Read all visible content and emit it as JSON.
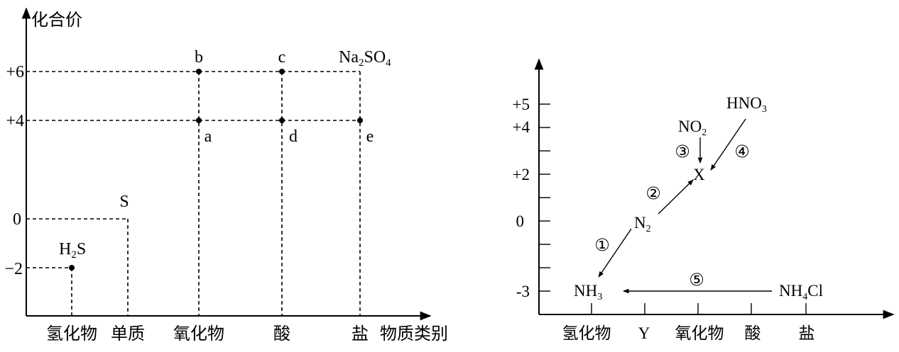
{
  "left_diagram": {
    "y_axis_title": "化合价",
    "x_axis_title": "物质类别",
    "y_ticks": [
      "+6",
      "+4",
      "0",
      "−2"
    ],
    "categories": [
      "氢化物",
      "单质",
      "氧化物",
      "酸",
      "盐"
    ],
    "points": [
      {
        "label": "b",
        "category": "氧化物",
        "valence": 6
      },
      {
        "label": "c",
        "category": "酸",
        "valence": 6
      },
      {
        "label": "a",
        "category": "氧化物",
        "valence": 4
      },
      {
        "label": "d",
        "category": "酸",
        "valence": 4
      },
      {
        "label": "e",
        "category": "盐",
        "valence": 4
      },
      {
        "label": "H₂S",
        "category": "氢化物",
        "valence": -2
      },
      {
        "label": "S",
        "category": "单质",
        "valence": 0
      },
      {
        "label": "Na₂SO₄",
        "category": "盐",
        "valence": 6
      }
    ],
    "labels": {
      "b": "b",
      "c": "c",
      "a": "a",
      "d": "d",
      "e": "e",
      "s": "S",
      "h2s_main": "H",
      "h2s_sub": "2",
      "h2s_tail": "S",
      "na2so4_na": "Na",
      "na2so4_sub2": "2",
      "na2so4_so": "SO",
      "na2so4_sub4": "4"
    }
  },
  "right_diagram": {
    "y_ticks": [
      "+5",
      "+4",
      "+2",
      "0",
      "-3"
    ],
    "categories": [
      "氢化物",
      "Y",
      "氧化物",
      "酸",
      "盐"
    ],
    "species": {
      "nh3_main": "NH",
      "nh3_sub": "3",
      "n2_main": "N",
      "n2_sub": "2",
      "x": "X",
      "no2_main": "NO",
      "no2_sub": "2",
      "hno3_main": "HNO",
      "hno3_sub": "3",
      "nh4cl_a": "NH",
      "nh4cl_sub": "4",
      "nh4cl_b": "Cl"
    },
    "steps": [
      "①",
      "②",
      "③",
      "④",
      "⑤"
    ]
  }
}
